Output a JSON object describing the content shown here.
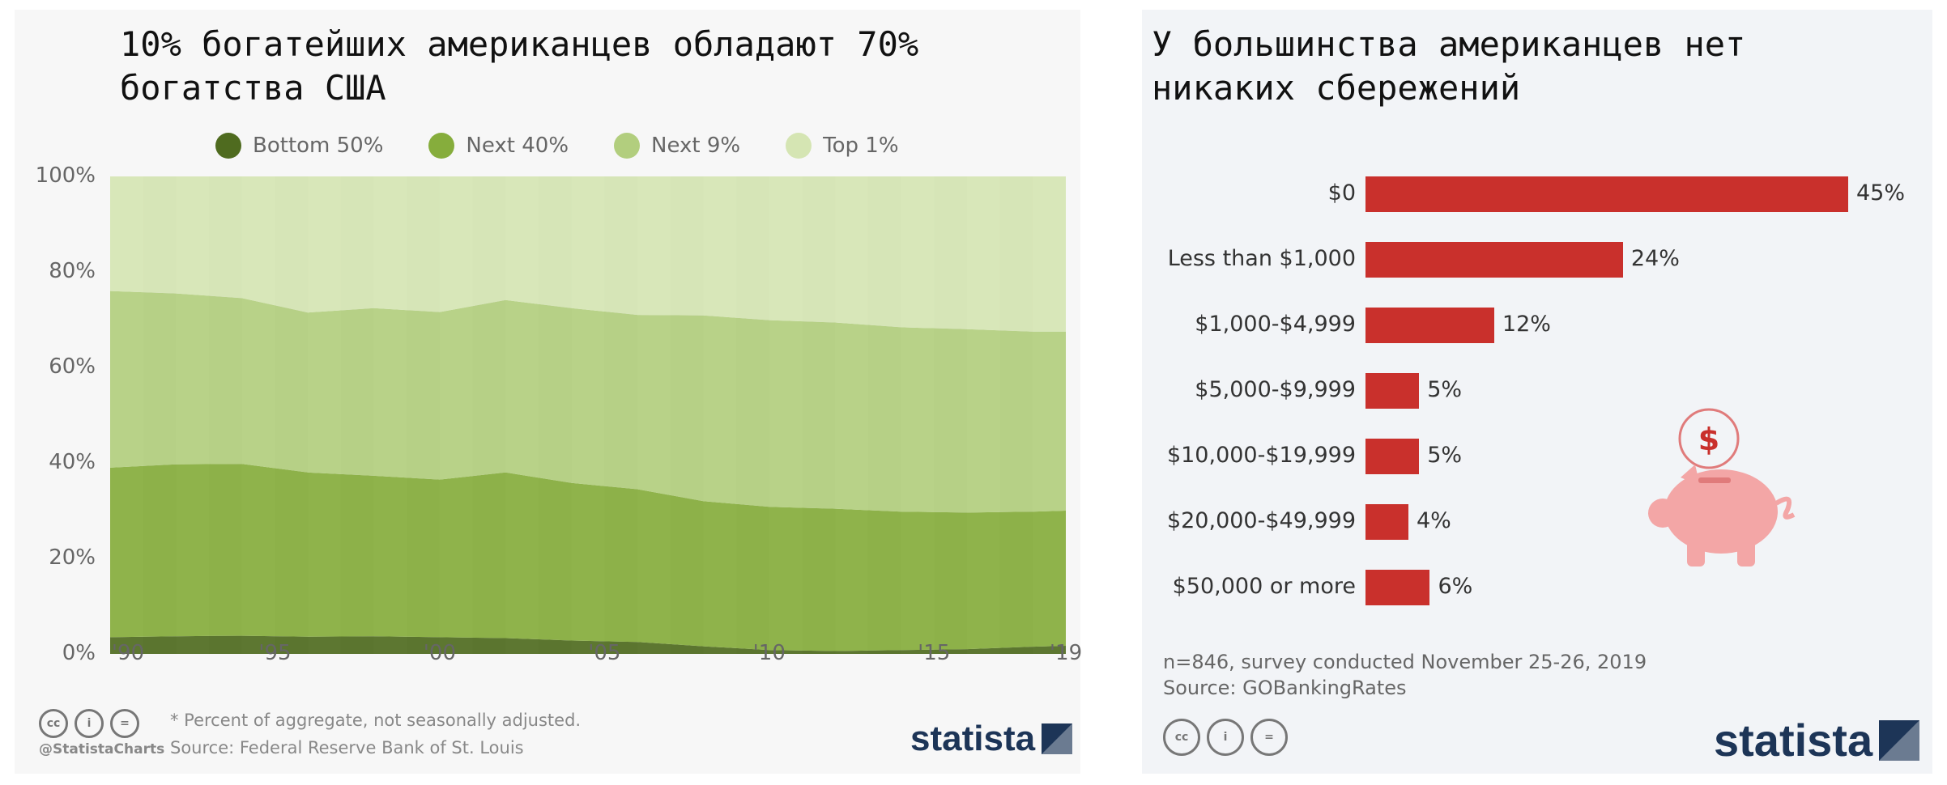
{
  "left": {
    "title": "10% богатейших американцев обладают 70%\nбогатства США",
    "legend": [
      {
        "label": "Bottom 50%",
        "color": "#4f6b1f"
      },
      {
        "label": "Next 40%",
        "color": "#86ad3c"
      },
      {
        "label": "Next 9%",
        "color": "#b2ce7e"
      },
      {
        "label": "Top 1%",
        "color": "#d5e5b3"
      }
    ],
    "note": "* Percent of aggregate, not seasonally adjusted.",
    "source": "Source: Federal Reserve Bank of St. Louis",
    "handle": "@StatistaCharts",
    "brand": "statista"
  },
  "right": {
    "title": "У большинства американцев нет\nникаких сбережений",
    "survey": "n=846, survey conducted November 25-26, 2019",
    "source": "Source: GOBankingRates",
    "brand": "statista"
  },
  "chart_data": [
    {
      "type": "area",
      "stacked": true,
      "title": "10% богатейших американцев обладают 70% богатства США",
      "x": [
        1990,
        1992,
        1994,
        1996,
        1998,
        2000,
        2002,
        2004,
        2006,
        2008,
        2010,
        2012,
        2014,
        2016,
        2018,
        2019
      ],
      "x_tick_labels": [
        "'90",
        "'95",
        "'00",
        "'05",
        "'10",
        "'15",
        "'19"
      ],
      "y_tick_labels": [
        "0%",
        "20%",
        "40%",
        "60%",
        "80%",
        "100%"
      ],
      "ylim": [
        0,
        100
      ],
      "series": [
        {
          "name": "Bottom 50%",
          "values": [
            3.5,
            3.7,
            3.8,
            3.6,
            3.7,
            3.5,
            3.3,
            2.8,
            2.5,
            1.6,
            0.8,
            0.6,
            0.8,
            1.0,
            1.5,
            1.7
          ]
        },
        {
          "name": "Next 40%",
          "values": [
            35.5,
            36.0,
            36.0,
            34.4,
            33.6,
            33.0,
            34.7,
            33.0,
            32.0,
            30.4,
            30.0,
            29.8,
            29.0,
            28.6,
            28.3,
            28.3
          ]
        },
        {
          "name": "Next 9%",
          "values": [
            37.0,
            35.8,
            34.7,
            33.5,
            35.1,
            35.1,
            36.1,
            36.6,
            36.5,
            38.9,
            39.1,
            39.0,
            38.6,
            38.4,
            37.7,
            37.5
          ]
        },
        {
          "name": "Top 1%",
          "values": [
            24.0,
            24.5,
            25.5,
            28.5,
            27.6,
            28.4,
            25.9,
            27.6,
            29.0,
            29.1,
            30.1,
            30.6,
            31.6,
            32.0,
            32.5,
            32.5
          ]
        }
      ],
      "grid": false,
      "legend_position": "top"
    },
    {
      "type": "bar",
      "orientation": "horizontal",
      "title": "У большинства американцев нет никаких сбережений",
      "categories": [
        "$0",
        "Less than $1,000",
        "$1,000-$4,999",
        "$5,000-$9,999",
        "$10,000-$19,999",
        "$20,000-$49,999",
        "$50,000 or more"
      ],
      "values": [
        45,
        24,
        12,
        5,
        5,
        4,
        6
      ],
      "value_labels": [
        "45%",
        "24%",
        "12%",
        "5%",
        "5%",
        "4%",
        "6%"
      ],
      "xlim": [
        0,
        45
      ],
      "color": "#c9302c"
    }
  ]
}
